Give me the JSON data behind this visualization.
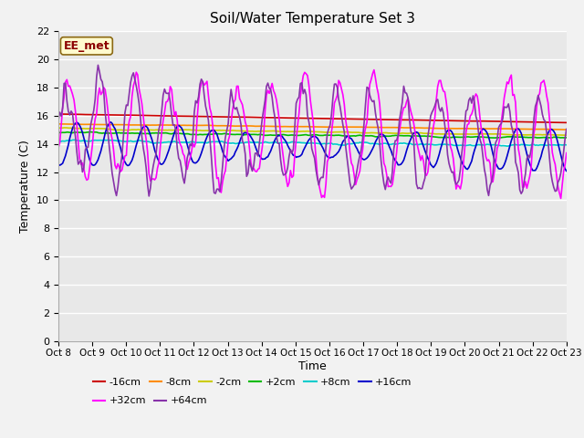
{
  "title": "Soil/Water Temperature Set 3",
  "xlabel": "Time",
  "ylabel": "Temperature (C)",
  "annotation": "EE_met",
  "annotation_color": "#8B0000",
  "annotation_bg": "#FFFACD",
  "annotation_border": "#8B6914",
  "xlim": [
    0,
    15
  ],
  "ylim": [
    0,
    22
  ],
  "yticks": [
    0,
    2,
    4,
    6,
    8,
    10,
    12,
    14,
    16,
    18,
    20,
    22
  ],
  "xtick_labels": [
    "Oct 8",
    "Oct 9",
    "Oct 10",
    "Oct 11",
    "Oct 12",
    "Oct 13",
    "Oct 14",
    "Oct 15",
    "Oct 16",
    "Oct 17",
    "Oct 18",
    "Oct 19",
    "Oct 20",
    "Oct 21",
    "Oct 22",
    "Oct 23"
  ],
  "fig_bg": "#F2F2F2",
  "plot_bg": "#E8E8E8",
  "grid_color": "#FFFFFF",
  "series_colors": [
    "#CC0000",
    "#FF8C00",
    "#CCCC00",
    "#00BB00",
    "#00CCCC",
    "#0000CC",
    "#FF00FF",
    "#8833AA"
  ],
  "series_labels": [
    "-16cm",
    "-8cm",
    "-2cm",
    "+2cm",
    "+8cm",
    "+16cm",
    "+32cm",
    "+64cm"
  ],
  "legend_row1": [
    0,
    1,
    2,
    3,
    4,
    5
  ],
  "legend_row2": [
    6,
    7
  ],
  "ncol1": 6,
  "ncol2": 2
}
